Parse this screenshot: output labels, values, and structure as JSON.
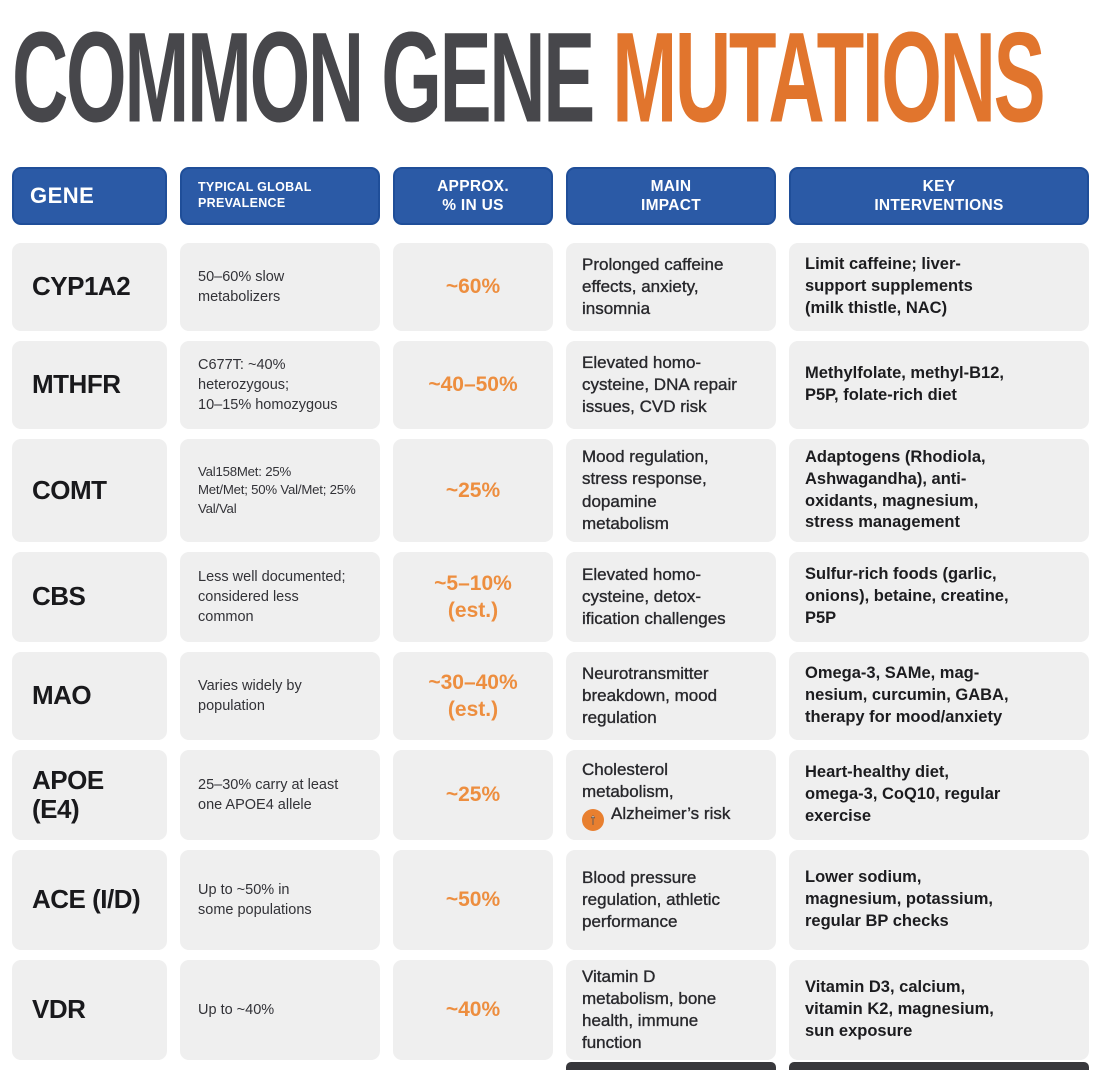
{
  "title": {
    "part1": "COMMON GENE ",
    "part2": "MUTATIONS"
  },
  "colors": {
    "title_gray": "#47474B",
    "title_orange": "#E1752D",
    "header_blue": "#2B5AA6",
    "value_orange": "#ED8E3F",
    "cell_bg": "#EFEFEF",
    "bottom_bar_dark": "#38383C"
  },
  "icons": {
    "up_arrow_glyph": "↑"
  },
  "columns": [
    {
      "label": "GENE"
    },
    {
      "label": "TYPICAL GLOBAL\nPREVALENCE"
    },
    {
      "label": "APPROX.\n% IN US"
    },
    {
      "label": "MAIN\nIMPACT"
    },
    {
      "label": "KEY\nINTERVENTIONS"
    }
  ],
  "rows": [
    {
      "gene": "CYP1A2",
      "prevalence": "50–60% slow\nmetabolizers",
      "us_percent": "~60%",
      "impact": "Prolonged caffeine\neffects, anxiety,\ninsomnia",
      "interventions": "Limit caffeine; liver-\nsupport supplements\n(milk thistle, NAC)"
    },
    {
      "gene": "MTHFR",
      "prevalence": "C677T: ~40%\nheterozygous;\n10–15% homozygous",
      "us_percent": "~40–50%",
      "impact": "Elevated homo-\ncysteine, DNA repair\nissues, CVD risk",
      "interventions": "Methylfolate, methyl-B12,\nP5P, folate-rich diet"
    },
    {
      "gene": "COMT",
      "prevalence": "Val158Met: 25%\nMet/Met; 50% Val/Met; 25%\nVal/Val",
      "us_percent": "~25%",
      "impact": "Mood regulation,\nstress response,\ndopamine\nmetabolism",
      "interventions": "Adaptogens (Rhodiola,\nAshwagandha), anti-\noxidants, magnesium,\nstress management"
    },
    {
      "gene": "CBS",
      "prevalence": "Less well documented;\nconsidered less\ncommon",
      "us_percent": "~5–10%\n(est.)",
      "impact": "Elevated homo-\ncysteine, detox-\nification challenges",
      "interventions": "Sulfur-rich foods (garlic,\nonions), betaine, creatine,\nP5P"
    },
    {
      "gene": "MAO",
      "prevalence": "Varies widely by\npopulation",
      "us_percent": "~30–40%\n(est.)",
      "impact": "Neurotransmitter\nbreakdown, mood\nregulation",
      "interventions": "Omega-3, SAMe, mag-\nnesium, curcumin, GABA,\ntherapy for mood/anxiety"
    },
    {
      "gene": "APOE\n(E4)",
      "prevalence": "25–30% carry at least\none APOE4 allele",
      "us_percent": "~25%",
      "impact": "Cholesterol\nmetabolism,",
      "impact_icon": "up-arrow",
      "impact_suffix": "Alzheimer’s risk",
      "interventions": "Heart-healthy diet,\nomega-3, CoQ10, regular\nexercise"
    },
    {
      "gene": "ACE (I/D)",
      "prevalence": "Up to ~50% in\nsome populations",
      "us_percent": "~50%",
      "impact": "Blood pressure\nregulation, athletic\nperformance",
      "interventions": "Lower sodium,\nmagnesium, potassium,\nregular BP checks"
    },
    {
      "gene": "VDR",
      "prevalence": "Up to ~40%",
      "us_percent": "~40%",
      "impact": "Vitamin D\nmetabolism, bone\nhealth, immune\nfunction",
      "interventions": "Vitamin D3, calcium,\nvitamin K2, magnesium,\nsun exposure"
    }
  ]
}
